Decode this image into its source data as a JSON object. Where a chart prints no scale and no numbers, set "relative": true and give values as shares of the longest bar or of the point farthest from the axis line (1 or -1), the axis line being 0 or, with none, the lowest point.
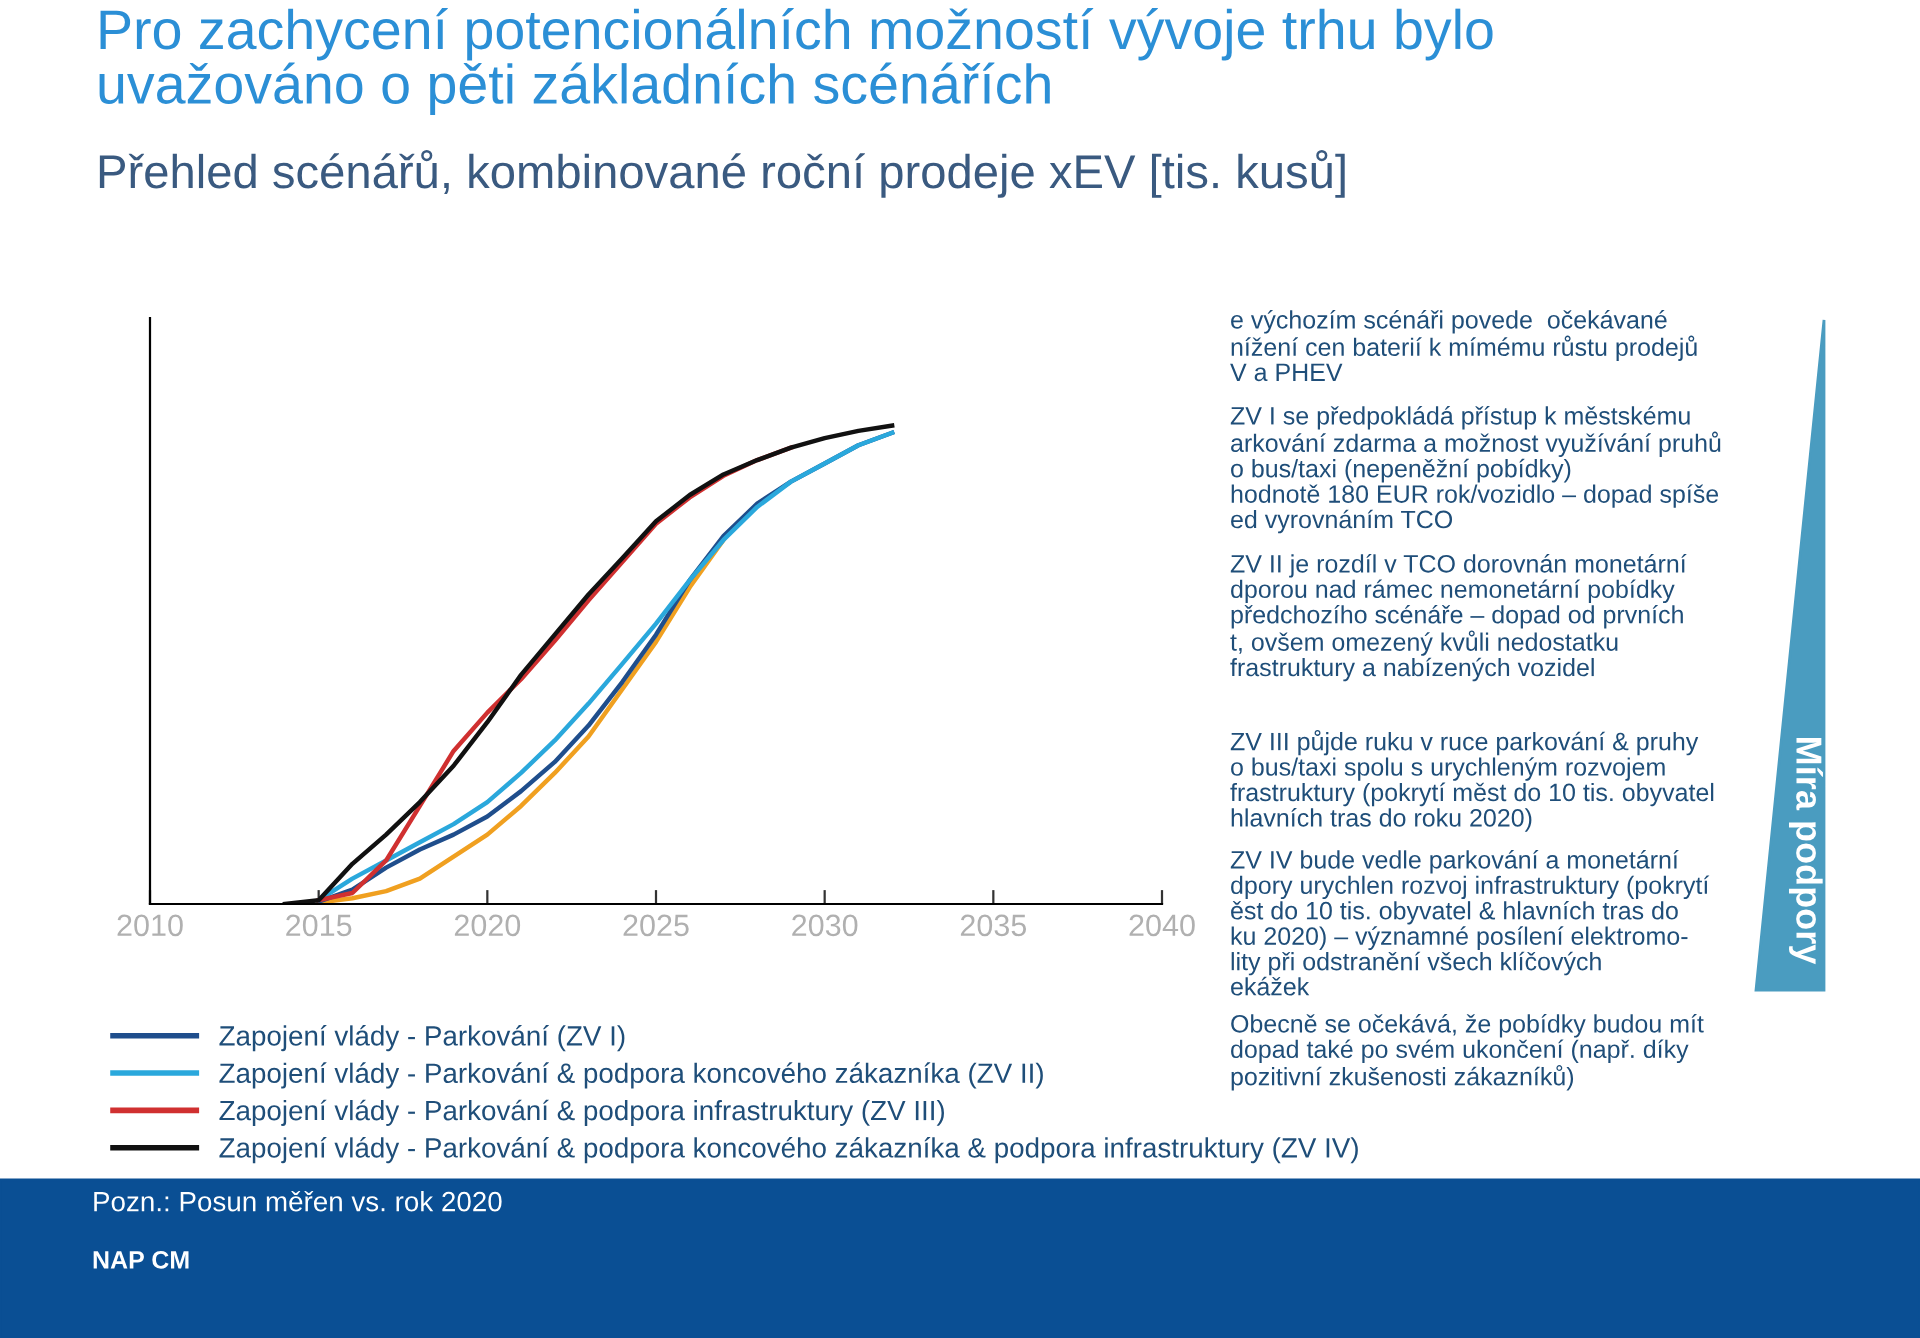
{
  "chart_data": {
    "type": "line",
    "title": "Pro zachycení potencionálních možností vývoje trhu bylo\nuvažováno o pěti základních scénářích",
    "subtitle": "Přehled scénářů, kombinované roční prodeje xEV [tis. kusů]",
    "relative": true,
    "xlim": [
      2010,
      2040
    ],
    "xticks": [
      2010,
      2015,
      2020,
      2025,
      2030,
      2035,
      2040
    ],
    "grid": false,
    "legend": "bottom",
    "marker": "none",
    "line_style": "solid",
    "x": [
      2015,
      2016,
      2017,
      2018,
      2019,
      2020,
      2021,
      2022,
      2023,
      2024,
      2025,
      2026,
      2027,
      2028,
      2029,
      2030,
      2031,
      2032
    ],
    "series": [
      {
        "color": "#f0a020",
        "values": [
          0.003,
          0.012,
          0.027,
          0.053,
          0.099,
          0.145,
          0.205,
          0.274,
          0.35,
          0.449,
          0.548,
          0.662,
          0.761,
          null,
          null,
          null,
          null,
          null
        ]
      },
      {
        "name": "Zapojení vlády - Parkování (ZV I)",
        "color": "#1f4e8c",
        "values": [
          0.005,
          0.03,
          0.076,
          0.114,
          0.145,
          0.183,
          0.236,
          0.297,
          0.373,
          0.464,
          0.563,
          0.677,
          0.769,
          0.837,
          0.883,
          0.921,
          0.959,
          0.985
        ]
      },
      {
        "name": "Zapojení vlády - Parkování & podpora koncového zákazníka (ZV II)",
        "color": "#2aa8dc",
        "values": [
          0.008,
          0.053,
          0.091,
          0.129,
          0.167,
          0.213,
          0.274,
          0.342,
          0.419,
          0.502,
          0.586,
          0.677,
          0.761,
          0.83,
          0.883,
          0.921,
          0.959,
          0.985
        ]
      },
      {
        "name": "Zapojení vlády - Parkování & podpora infrastruktury (ZV III)",
        "color": "#d03030",
        "values": [
          0.008,
          0.023,
          0.091,
          0.205,
          0.32,
          0.4,
          0.47,
          0.55,
          0.635,
          0.715,
          0.795,
          0.85,
          0.895,
          0.928,
          0.954,
          null,
          null,
          null
        ]
      },
      {
        "name": "Zapojení vlády - Parkování & podpora koncového zákazníka & podpora infrastruktury (ZV IV)",
        "color": "#111111",
        "x": [
          2014,
          2015,
          2016,
          2017,
          2018,
          2019,
          2020,
          2021,
          2022,
          2023,
          2024,
          2025,
          2026,
          2027,
          2028,
          2029,
          2030,
          2031,
          2032
        ],
        "values": [
          0,
          0.008,
          0.084,
          0.145,
          0.213,
          0.289,
          0.38,
          0.479,
          0.563,
          0.647,
          0.723,
          0.8,
          0.855,
          0.898,
          0.928,
          0.954,
          0.974,
          0.989,
          1
        ]
      }
    ],
    "annotations": [
      "e výchozím scénáři povede  očekávané\nnížení cen baterií k mímému růstu prodejů\nV a PHEV",
      "ZV I se předpokládá přístup k městskému\narkování zdarma a možnost využívání pruhů\no bus/taxi (nepeněžní pobídky)\nhodnotě 180 EUR rok/vozidlo – dopad spíše\ned vyrovnáním TCO",
      "ZV II je rozdíl v TCO dorovnán monetární\ndporou nad rámec nemonetární pobídky\npředchozího scénáře – dopad od prvních\nt, ovšem omezený kvůli nedostatku\nfrastruktury a nabízených vozidel",
      "ZV III půjde ruku v ruce parkování & pruhy\no bus/taxi spolu s urychleným rozvojem\nfrastruktury (pokrytí měst do 10 tis. obyvatel\nhlavních tras do roku 2020)",
      "ZV IV bude vedle parkování a monetární\ndpory urychlen rozvoj infrastruktury (pokrytí\něst do 10 tis. obyvatel & hlavních tras do\nku 2020) – významné posílení elektromo-\nlity při odstranění všech klíčových\nekážek",
      "Obecně se očekává, že pobídky budou mít\ndopad také po svém ukončení (např. díky\npozitivní zkušenosti zákazníků)",
      "Míra podpory",
      "Pozn.: Posun měřen vs. rok 2020",
      "NAP CM"
    ]
  }
}
